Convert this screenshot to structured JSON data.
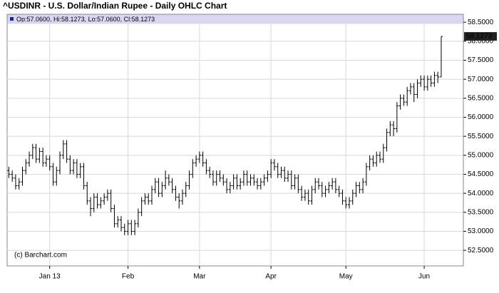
{
  "chart_data": {
    "type": "ohlc",
    "title": "^USDINR - U.S. Dollar/Indian Rupee - Daily OHLC Chart",
    "info": "Op:57.0600, Hi:58.1273, Lo:57.0600, Cl:58.1273",
    "credit": "(c) Barchart.com",
    "last_price_label": "58.1273",
    "color": "#000000",
    "grid": true,
    "xlim": [
      -0.5,
      133.5
    ],
    "xticks": [
      {
        "value": 12,
        "label": "Jan 13"
      },
      {
        "value": 35,
        "label": "Feb"
      },
      {
        "value": 56,
        "label": "Mar"
      },
      {
        "value": 77,
        "label": "Apr"
      },
      {
        "value": 99,
        "label": "May"
      },
      {
        "value": 122,
        "label": "Jun"
      }
    ],
    "ylim": [
      52.09,
      58.71
    ],
    "yticks": [
      {
        "value": 52.5,
        "label": "52.5000"
      },
      {
        "value": 53,
        "label": "53.0000"
      },
      {
        "value": 53.5,
        "label": "53.5000"
      },
      {
        "value": 54,
        "label": "54.0000"
      },
      {
        "value": 54.5,
        "label": "54.5000"
      },
      {
        "value": 55,
        "label": "55.0000"
      },
      {
        "value": 55.5,
        "label": "55.5000"
      },
      {
        "value": 56,
        "label": "56.0000"
      },
      {
        "value": 56.5,
        "label": "56.5000"
      },
      {
        "value": 57,
        "label": "57.0000"
      },
      {
        "value": 57.5,
        "label": "57.5000"
      },
      {
        "value": 58,
        "label": "58.0000"
      },
      {
        "value": 58.5,
        "label": "58.5000"
      }
    ],
    "open": [
      54.6,
      54.5,
      54.4,
      54.2,
      54.3,
      54.6,
      54.8,
      55.0,
      55.2,
      54.9,
      55.1,
      54.8,
      54.9,
      54.7,
      54.3,
      54.6,
      55.0,
      55.3,
      54.9,
      54.6,
      54.8,
      54.5,
      54.7,
      54.2,
      53.8,
      53.6,
      53.9,
      53.7,
      53.8,
      53.9,
      54.0,
      53.6,
      53.2,
      53.3,
      53.1,
      53.0,
      53.2,
      53.0,
      53.2,
      53.5,
      53.8,
      53.9,
      53.8,
      54.1,
      54.3,
      54.0,
      54.2,
      54.4,
      54.3,
      54.1,
      53.9,
      53.8,
      54.0,
      54.2,
      54.5,
      54.8,
      54.9,
      55.0,
      54.8,
      54.6,
      54.5,
      54.3,
      54.5,
      54.4,
      54.3,
      54.1,
      54.2,
      54.4,
      54.2,
      54.3,
      54.5,
      54.3,
      54.4,
      54.3,
      54.2,
      54.3,
      54.4,
      54.5,
      54.8,
      54.7,
      54.5,
      54.6,
      54.4,
      54.5,
      54.2,
      54.4,
      54.1,
      53.9,
      54.0,
      53.8,
      54.1,
      54.3,
      54.2,
      54.0,
      54.1,
      54.2,
      54.3,
      54.1,
      54.0,
      53.8,
      53.7,
      53.8,
      54.0,
      54.2,
      54.1,
      54.3,
      54.7,
      54.9,
      54.8,
      55.0,
      54.9,
      55.2,
      55.6,
      55.8,
      55.7,
      56.3,
      56.5,
      56.4,
      56.7,
      56.8,
      56.6,
      56.9,
      57.0,
      56.8,
      57.0,
      56.9,
      57.1,
      57.06
    ],
    "high": [
      54.7,
      54.6,
      54.5,
      54.4,
      54.7,
      54.9,
      55.1,
      55.3,
      55.3,
      55.2,
      55.2,
      55.0,
      55.0,
      54.8,
      54.7,
      55.1,
      55.4,
      55.4,
      55.0,
      54.9,
      54.9,
      54.8,
      54.8,
      54.3,
      53.9,
      54.0,
      54.0,
      53.9,
      54.0,
      54.1,
      54.1,
      53.7,
      53.4,
      53.4,
      53.2,
      53.3,
      53.3,
      53.3,
      53.6,
      53.9,
      54.0,
      54.0,
      54.2,
      54.4,
      54.4,
      54.3,
      54.6,
      54.5,
      54.4,
      54.2,
      54.0,
      54.1,
      54.3,
      54.6,
      54.9,
      55.0,
      55.1,
      55.1,
      54.9,
      54.7,
      54.6,
      54.6,
      54.6,
      54.5,
      54.4,
      54.3,
      54.5,
      54.5,
      54.4,
      54.6,
      54.6,
      54.5,
      54.5,
      54.4,
      54.4,
      54.5,
      54.6,
      54.9,
      54.9,
      54.8,
      54.7,
      54.7,
      54.6,
      54.6,
      54.5,
      54.5,
      54.2,
      54.1,
      54.1,
      54.2,
      54.4,
      54.4,
      54.3,
      54.2,
      54.3,
      54.4,
      54.4,
      54.2,
      54.1,
      53.9,
      53.9,
      54.1,
      54.3,
      54.3,
      54.4,
      54.8,
      55.0,
      55.0,
      55.1,
      55.1,
      55.3,
      55.7,
      55.9,
      55.9,
      56.4,
      56.6,
      56.6,
      56.8,
      56.9,
      56.9,
      57.0,
      57.1,
      57.1,
      57.1,
      57.1,
      57.2,
      57.2,
      58.1273
    ],
    "low": [
      54.4,
      54.3,
      54.1,
      54.1,
      54.2,
      54.5,
      54.7,
      54.9,
      54.8,
      54.8,
      54.7,
      54.7,
      54.6,
      54.2,
      54.2,
      54.5,
      54.9,
      54.8,
      54.5,
      54.5,
      54.4,
      54.4,
      54.1,
      53.7,
      53.4,
      53.5,
      53.6,
      53.6,
      53.7,
      53.8,
      53.5,
      53.1,
      53.1,
      53.0,
      52.9,
      52.9,
      52.9,
      52.9,
      53.1,
      53.4,
      53.7,
      53.7,
      53.7,
      54.0,
      53.9,
      53.9,
      54.1,
      54.2,
      54.0,
      53.8,
      53.6,
      53.7,
      53.9,
      54.1,
      54.4,
      54.7,
      54.8,
      54.7,
      54.5,
      54.4,
      54.2,
      54.2,
      54.3,
      54.2,
      54.0,
      54.0,
      54.1,
      54.1,
      54.1,
      54.2,
      54.2,
      54.2,
      54.2,
      54.1,
      54.1,
      54.2,
      54.3,
      54.4,
      54.6,
      54.4,
      54.4,
      54.3,
      54.3,
      54.1,
      54.1,
      54.0,
      53.8,
      53.8,
      53.7,
      53.7,
      54.0,
      54.1,
      53.9,
      53.9,
      54.0,
      54.1,
      54.0,
      53.9,
      53.7,
      53.6,
      53.6,
      53.7,
      53.9,
      54.0,
      54.0,
      54.2,
      54.6,
      54.7,
      54.7,
      54.8,
      54.8,
      55.1,
      55.5,
      55.5,
      55.6,
      56.2,
      56.3,
      56.3,
      56.6,
      56.4,
      56.5,
      56.8,
      56.7,
      56.7,
      56.8,
      56.8,
      56.9,
      57.06
    ],
    "close": [
      54.5,
      54.4,
      54.2,
      54.3,
      54.6,
      54.8,
      55.0,
      55.2,
      54.9,
      55.1,
      54.8,
      54.9,
      54.7,
      54.3,
      54.6,
      55.0,
      55.3,
      54.9,
      54.6,
      54.8,
      54.5,
      54.7,
      54.2,
      53.8,
      53.6,
      53.9,
      53.7,
      53.8,
      53.9,
      54.0,
      53.6,
      53.2,
      53.3,
      53.1,
      53.0,
      53.2,
      53.0,
      53.2,
      53.5,
      53.8,
      53.9,
      53.8,
      54.1,
      54.3,
      54.0,
      54.2,
      54.4,
      54.3,
      54.1,
      53.9,
      53.8,
      54.0,
      54.2,
      54.5,
      54.8,
      54.9,
      55.0,
      54.8,
      54.6,
      54.5,
      54.3,
      54.5,
      54.4,
      54.3,
      54.1,
      54.2,
      54.4,
      54.2,
      54.3,
      54.5,
      54.3,
      54.4,
      54.3,
      54.2,
      54.3,
      54.4,
      54.5,
      54.8,
      54.7,
      54.5,
      54.6,
      54.4,
      54.5,
      54.2,
      54.4,
      54.1,
      53.9,
      54.0,
      53.8,
      54.1,
      54.3,
      54.2,
      54.0,
      54.1,
      54.2,
      54.3,
      54.1,
      54.0,
      53.8,
      53.7,
      53.8,
      54.0,
      54.2,
      54.1,
      54.3,
      54.7,
      54.9,
      54.8,
      55.0,
      54.9,
      55.2,
      55.6,
      55.8,
      55.7,
      56.3,
      56.5,
      56.4,
      56.7,
      56.8,
      56.6,
      56.9,
      57.0,
      56.8,
      57.0,
      56.9,
      57.1,
      57.06,
      58.1273
    ]
  }
}
